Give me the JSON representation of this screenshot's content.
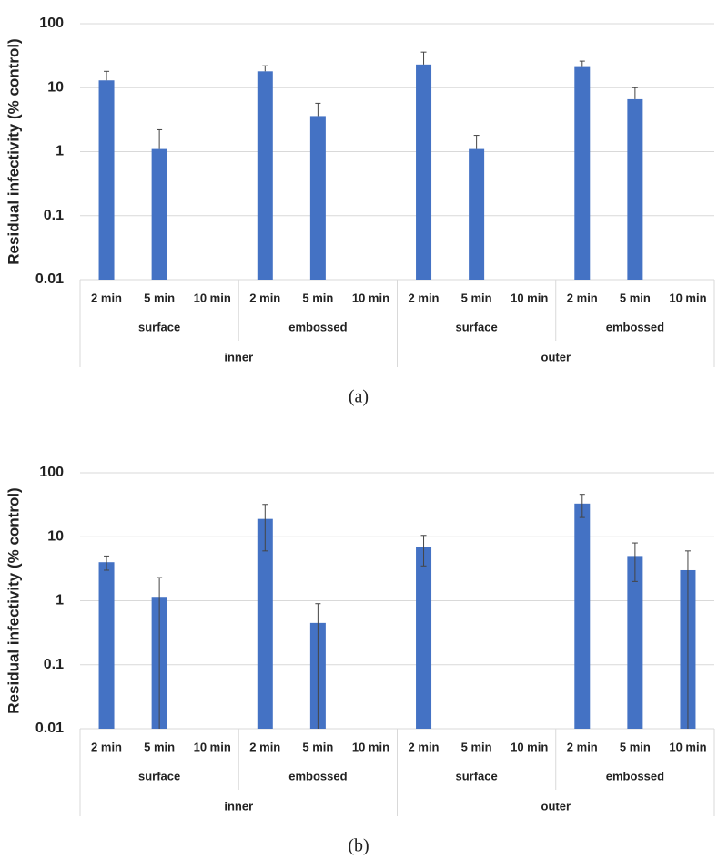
{
  "chart_data": [
    {
      "type": "bar",
      "caption": "(a)",
      "y_label": "Residual infectivity (% control)",
      "categories": [
        "2 min",
        "5 min",
        "10 min",
        "2 min",
        "5 min",
        "10 min",
        "2 min",
        "5 min",
        "10 min",
        "2 min",
        "5 min",
        "10 min"
      ],
      "subgroups": [
        "surface",
        "embossed",
        "surface",
        "embossed"
      ],
      "groups": [
        "inner",
        "outer"
      ],
      "values": [
        13,
        1.1,
        null,
        18,
        3.6,
        null,
        23,
        1.1,
        null,
        21,
        6.6,
        null
      ],
      "errors": [
        5,
        1.1,
        null,
        4,
        2.1,
        null,
        13,
        0.7,
        null,
        5,
        3.4,
        null
      ],
      "error_bars": "upper",
      "color": "#4472c4",
      "log_scale": true,
      "grid": true,
      "ylim": [
        0.01,
        100
      ],
      "yticks": [
        0.01,
        0.1,
        1,
        10,
        100
      ]
    },
    {
      "type": "bar",
      "caption": "(b)",
      "y_label": "Residual infectivity (% control)",
      "categories": [
        "2 min",
        "5 min",
        "10 min",
        "2 min",
        "5 min",
        "10 min",
        "2 min",
        "5 min",
        "10 min",
        "2 min",
        "5 min",
        "10 min"
      ],
      "subgroups": [
        "surface",
        "embossed",
        "surface",
        "embossed"
      ],
      "groups": [
        "inner",
        "outer"
      ],
      "values": [
        4,
        1.15,
        null,
        19,
        0.45,
        null,
        7,
        null,
        null,
        33,
        5,
        3
      ],
      "errors": [
        1,
        1.15,
        null,
        13,
        0.45,
        null,
        3.5,
        null,
        null,
        13,
        3,
        3
      ],
      "error_bars": "both",
      "color": "#4472c4",
      "log_scale": true,
      "grid": true,
      "ylim": [
        0.01,
        100
      ],
      "yticks": [
        0.01,
        0.1,
        1,
        10,
        100
      ]
    }
  ]
}
